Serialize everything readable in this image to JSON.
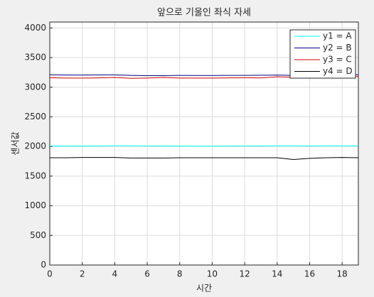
{
  "chart_data": {
    "type": "line",
    "title": "앞으로 기울인 좌식 자세",
    "x_label": "시간",
    "y_label": "센서값",
    "x": [
      0,
      1,
      2,
      3,
      4,
      5,
      6,
      7,
      8,
      9,
      10,
      11,
      12,
      13,
      14,
      15,
      16,
      17,
      18,
      19
    ],
    "xlim": [
      0,
      19
    ],
    "xticks": [
      0,
      2,
      4,
      6,
      8,
      10,
      12,
      14,
      16,
      18
    ],
    "ylim": [
      0,
      4100
    ],
    "yticks": [
      0,
      500,
      1000,
      1500,
      2000,
      2500,
      3000,
      3500,
      4000
    ],
    "grid": true,
    "legend_position": "northeast",
    "series": [
      {
        "name": "y1 = A",
        "color": "#00ffff",
        "values": [
          2010,
          2008,
          2008,
          2010,
          2012,
          2012,
          2010,
          2010,
          2008,
          2006,
          2006,
          2010,
          2010,
          2010,
          2012,
          2012,
          2010,
          2012,
          2012,
          2010
        ]
      },
      {
        "name": "y2 = B",
        "color": "#00007f",
        "values": [
          3210,
          3205,
          3205,
          3208,
          3208,
          3200,
          3195,
          3195,
          3200,
          3198,
          3198,
          3200,
          3200,
          3202,
          3205,
          3200,
          3200,
          3205,
          3210,
          3210
        ]
      },
      {
        "name": "y3 = C",
        "color": "#cc0000",
        "values": [
          3160,
          3155,
          3155,
          3158,
          3165,
          3150,
          3155,
          3165,
          3155,
          3155,
          3155,
          3158,
          3160,
          3158,
          3175,
          3170,
          3175,
          3180,
          3180,
          3180
        ]
      },
      {
        "name": "y4 = D",
        "color": "#000000",
        "values": [
          1810,
          1810,
          1815,
          1815,
          1815,
          1805,
          1805,
          1805,
          1810,
          1810,
          1810,
          1810,
          1810,
          1810,
          1810,
          1780,
          1800,
          1810,
          1815,
          1810
        ]
      }
    ]
  }
}
